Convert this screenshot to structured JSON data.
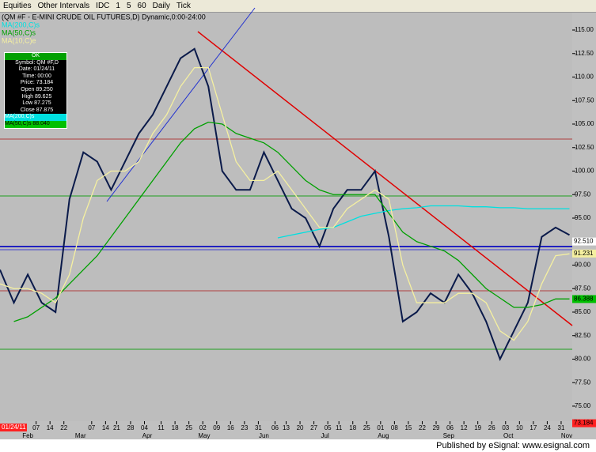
{
  "toolbar": {
    "items": [
      "Equities",
      "Other Intervals",
      "IDC",
      "1",
      "5",
      "60",
      "Daily",
      "Tick"
    ]
  },
  "chart_data": {
    "type": "line",
    "title": "(QM #F - E-MINI CRUDE OIL FUTURES,D) Dynamic,0:00-24:00",
    "cursor_date": "01/24/11",
    "data_window": {
      "title": "OK",
      "lines": [
        "Symbol: QM #F,D",
        "Date: 01/24/11",
        "Time: 00:00",
        "Price: 73.184",
        "Open 89.250",
        "High 89.625",
        "Low 87.275",
        "Close 87.875"
      ],
      "ma_lines": [
        "MA(200,C)s",
        "MA(50,C)s 88.040"
      ]
    },
    "x": [
      0,
      5,
      10,
      15,
      20,
      25,
      30,
      35,
      40,
      45,
      50,
      55,
      60,
      65,
      70,
      75,
      80,
      85,
      90,
      95,
      100,
      105,
      110,
      115,
      120,
      125,
      130,
      135,
      140,
      145,
      150,
      155,
      160,
      165,
      170,
      175,
      180,
      185,
      190,
      195,
      200,
      205
    ],
    "xlim": [
      0,
      206
    ],
    "xticks": [
      {
        "value": 13,
        "label": "07"
      },
      {
        "value": 18,
        "label": "14"
      },
      {
        "value": 23,
        "label": "22"
      },
      {
        "value": 33,
        "label": "07"
      },
      {
        "value": 38,
        "label": "14"
      },
      {
        "value": 42,
        "label": "21"
      },
      {
        "value": 47,
        "label": "28"
      },
      {
        "value": 52,
        "label": "04"
      },
      {
        "value": 58,
        "label": "11"
      },
      {
        "value": 63,
        "label": "18"
      },
      {
        "value": 68,
        "label": "25"
      },
      {
        "value": 73,
        "label": "02"
      },
      {
        "value": 78,
        "label": "09"
      },
      {
        "value": 83,
        "label": "16"
      },
      {
        "value": 88,
        "label": "23"
      },
      {
        "value": 93,
        "label": "31"
      },
      {
        "value": 99,
        "label": "06"
      },
      {
        "value": 103,
        "label": "13"
      },
      {
        "value": 108,
        "label": "20"
      },
      {
        "value": 113,
        "label": "27"
      },
      {
        "value": 118,
        "label": "05"
      },
      {
        "value": 122,
        "label": "11"
      },
      {
        "value": 127,
        "label": "18"
      },
      {
        "value": 132,
        "label": "25"
      },
      {
        "value": 137,
        "label": "01"
      },
      {
        "value": 142,
        "label": "08"
      },
      {
        "value": 147,
        "label": "15"
      },
      {
        "value": 152,
        "label": "22"
      },
      {
        "value": 157,
        "label": "29"
      },
      {
        "value": 162,
        "label": "06"
      },
      {
        "value": 167,
        "label": "12"
      },
      {
        "value": 172,
        "label": "19"
      },
      {
        "value": 177,
        "label": "26"
      },
      {
        "value": 182,
        "label": "03"
      },
      {
        "value": 187,
        "label": "10"
      },
      {
        "value": 192,
        "label": "17"
      },
      {
        "value": 197,
        "label": "24"
      },
      {
        "value": 202,
        "label": "31"
      }
    ],
    "month_ticks": [
      {
        "value": 10,
        "label": "Feb"
      },
      {
        "value": 29,
        "label": "Mar"
      },
      {
        "value": 53,
        "label": "Apr"
      },
      {
        "value": 73.5,
        "label": "May"
      },
      {
        "value": 95,
        "label": "Jun"
      },
      {
        "value": 117,
        "label": "Jul"
      },
      {
        "value": 138,
        "label": "Aug"
      },
      {
        "value": 161.5,
        "label": "Sep"
      },
      {
        "value": 183,
        "label": "Oct"
      },
      {
        "value": 204,
        "label": "Nov"
      }
    ],
    "ylim": [
      73.4,
      116.85
    ],
    "yticks": [
      {
        "value": 75,
        "label": "75.00"
      },
      {
        "value": 77.5,
        "label": "77.50"
      },
      {
        "value": 80,
        "label": "80.00"
      },
      {
        "value": 82.5,
        "label": "82.50"
      },
      {
        "value": 85,
        "label": "85.00"
      },
      {
        "value": 87.5,
        "label": "87.50"
      },
      {
        "value": 90,
        "label": "90.00"
      },
      {
        "value": 92.5,
        "label": "92.50"
      },
      {
        "value": 95,
        "label": "95.00"
      },
      {
        "value": 97.5,
        "label": "97.50"
      },
      {
        "value": 100,
        "label": "100.00"
      },
      {
        "value": 102.5,
        "label": "102.50"
      },
      {
        "value": 105,
        "label": "105.00"
      },
      {
        "value": 107.5,
        "label": "107.50"
      },
      {
        "value": 110,
        "label": "110.00"
      },
      {
        "value": 112.5,
        "label": "112.50"
      },
      {
        "value": 115,
        "label": "115.00"
      }
    ],
    "series": [
      {
        "color": "#0a1a4a",
        "values": [
          89.5,
          86,
          89,
          86,
          85,
          97,
          102,
          101,
          98,
          101,
          104,
          106,
          109,
          112,
          113,
          109,
          100,
          98,
          98,
          102,
          99,
          96,
          95,
          92,
          96,
          98,
          98,
          100,
          93,
          84,
          85,
          87,
          86,
          89,
          87,
          84,
          80,
          83,
          86,
          93,
          94,
          93.2
        ]
      },
      {
        "name": "MA(200,C)s",
        "color": "#00e0e0",
        "values": [
          null,
          null,
          null,
          null,
          null,
          null,
          null,
          null,
          null,
          null,
          null,
          null,
          null,
          null,
          null,
          null,
          null,
          null,
          null,
          null,
          92.9,
          93.2,
          93.5,
          93.8,
          94,
          94.6,
          95.2,
          95.5,
          95.8,
          96,
          96.1,
          96.3,
          96.3,
          96.3,
          96.2,
          96.2,
          96.1,
          96.1,
          96.0,
          96.0,
          96.0,
          96.0
        ]
      },
      {
        "name": "MA(50,C)s",
        "color": "#00a000",
        "values": [
          null,
          84,
          84.5,
          85.5,
          86.5,
          88,
          89.5,
          91,
          93,
          95,
          97,
          99,
          101,
          103,
          104.5,
          105.2,
          105,
          104,
          103.5,
          103,
          102,
          100.5,
          99,
          98,
          97.5,
          97.5,
          97.5,
          97.5,
          95.5,
          93.5,
          92.5,
          92,
          91.5,
          90.5,
          89,
          87.5,
          86.5,
          85.5,
          85.5,
          85.8,
          86.4,
          86.4
        ]
      },
      {
        "name": "MA(10,C)e",
        "color": "#f5f0a0",
        "values": [
          88,
          87.5,
          87.5,
          87,
          86,
          89,
          95,
          99,
          100,
          100,
          101,
          104,
          106,
          109,
          111,
          111,
          106,
          101,
          99,
          99,
          100,
          98,
          96,
          94,
          94,
          96,
          97,
          98,
          97,
          90,
          86,
          86,
          86,
          87,
          87,
          86,
          83,
          82,
          84,
          88,
          91,
          91.2
        ]
      }
    ],
    "price_labels": [
      {
        "value": 92.51,
        "label": "92.510",
        "color": "#ffffff"
      },
      {
        "value": 91.231,
        "label": "91.231",
        "color": "#f5f0a0"
      },
      {
        "value": 86.388,
        "label": "86.388",
        "color": "#00c000"
      },
      {
        "value": 73.184,
        "label": "73.184",
        "color": "#ff2020"
      }
    ]
  },
  "footer": "Published by eSignal: www.esignal.com"
}
